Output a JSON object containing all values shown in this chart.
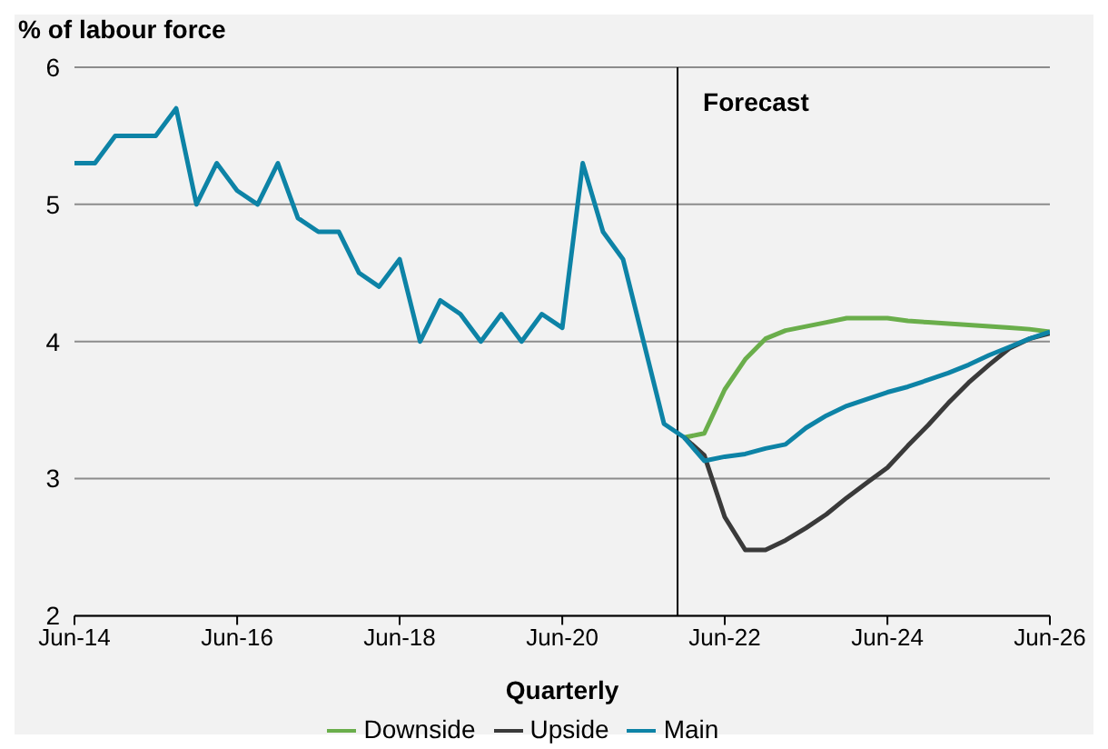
{
  "chart_data": {
    "type": "line",
    "ylabel": "% of labour force",
    "xlabel": "Quarterly",
    "x": [
      "2014-06",
      "2014-09",
      "2014-12",
      "2015-03",
      "2015-06",
      "2015-09",
      "2015-12",
      "2016-03",
      "2016-06",
      "2016-09",
      "2016-12",
      "2017-03",
      "2017-06",
      "2017-09",
      "2017-12",
      "2018-03",
      "2018-06",
      "2018-09",
      "2018-12",
      "2019-03",
      "2019-06",
      "2019-09",
      "2019-12",
      "2020-03",
      "2020-06",
      "2020-09",
      "2020-12",
      "2021-03",
      "2021-06",
      "2021-09",
      "2021-12",
      "2022-03",
      "2022-06",
      "2022-09",
      "2022-12",
      "2023-03",
      "2023-06",
      "2023-09",
      "2023-12",
      "2024-03",
      "2024-06",
      "2024-09",
      "2024-12",
      "2025-03",
      "2025-06",
      "2025-09",
      "2025-12",
      "2026-03",
      "2026-06"
    ],
    "series": [
      {
        "name": "Downside",
        "color": "#6aae4b",
        "values": [
          null,
          null,
          null,
          null,
          null,
          null,
          null,
          null,
          null,
          null,
          null,
          null,
          null,
          null,
          null,
          null,
          null,
          null,
          null,
          null,
          null,
          null,
          null,
          null,
          null,
          null,
          null,
          null,
          null,
          null,
          3.3,
          3.33,
          3.65,
          3.87,
          4.02,
          4.08,
          4.11,
          4.14,
          4.17,
          4.17,
          4.17,
          4.15,
          4.14,
          4.13,
          4.12,
          4.11,
          4.1,
          4.09,
          4.07
        ]
      },
      {
        "name": "Upside",
        "color": "#3a3a3a",
        "values": [
          null,
          null,
          null,
          null,
          null,
          null,
          null,
          null,
          null,
          null,
          null,
          null,
          null,
          null,
          null,
          null,
          null,
          null,
          null,
          null,
          null,
          null,
          null,
          null,
          null,
          null,
          null,
          null,
          null,
          null,
          3.3,
          3.17,
          2.72,
          2.48,
          2.48,
          2.55,
          2.64,
          2.74,
          2.86,
          2.97,
          3.08,
          3.24,
          3.39,
          3.55,
          3.7,
          3.83,
          3.95,
          4.02,
          4.06
        ]
      },
      {
        "name": "Main",
        "color": "#0d83a6",
        "values": [
          5.3,
          5.3,
          5.5,
          5.5,
          5.5,
          5.7,
          5.0,
          5.3,
          5.1,
          5.0,
          5.3,
          4.9,
          4.8,
          4.8,
          4.5,
          4.4,
          4.6,
          4.0,
          4.3,
          4.2,
          4.0,
          4.2,
          4.0,
          4.2,
          4.1,
          5.3,
          4.8,
          4.6,
          4.0,
          3.4,
          3.3,
          3.13,
          3.16,
          3.18,
          3.22,
          3.25,
          3.37,
          3.46,
          3.53,
          3.58,
          3.63,
          3.67,
          3.72,
          3.77,
          3.83,
          3.9,
          3.96,
          4.02,
          4.07
        ]
      }
    ],
    "xlim": [
      "2014-06",
      "2026-06"
    ],
    "xticks": [
      {
        "value": "2014-06",
        "label": "Jun-14"
      },
      {
        "value": "2016-06",
        "label": "Jun-16"
      },
      {
        "value": "2018-06",
        "label": "Jun-18"
      },
      {
        "value": "2020-06",
        "label": "Jun-20"
      },
      {
        "value": "2022-06",
        "label": "Jun-22"
      },
      {
        "value": "2024-06",
        "label": "Jun-24"
      },
      {
        "value": "2026-06",
        "label": "Jun-26"
      }
    ],
    "ylim": [
      2,
      6
    ],
    "yticks": [
      2,
      3,
      4,
      5,
      6
    ],
    "ref_lines": [
      {
        "axis": "x",
        "value": "2021-11",
        "label": "Forecast",
        "color": "#000000"
      }
    ],
    "grid": "y",
    "legend": "bottom",
    "marker": "none",
    "line_style": "solid"
  }
}
